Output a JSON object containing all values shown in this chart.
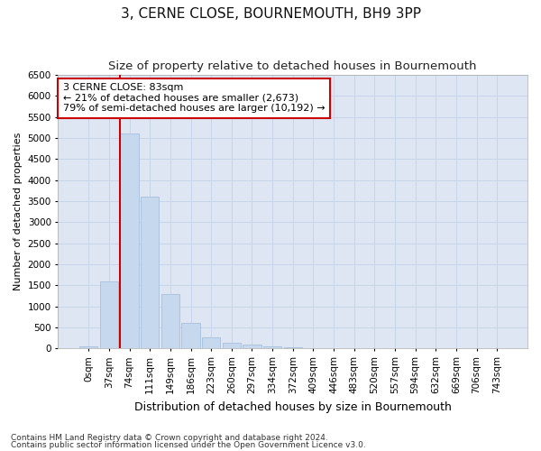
{
  "title": "3, CERNE CLOSE, BOURNEMOUTH, BH9 3PP",
  "subtitle": "Size of property relative to detached houses in Bournemouth",
  "xlabel": "Distribution of detached houses by size in Bournemouth",
  "ylabel": "Number of detached properties",
  "footnote1": "Contains HM Land Registry data © Crown copyright and database right 2024.",
  "footnote2": "Contains public sector information licensed under the Open Government Licence v3.0.",
  "bar_labels": [
    "0sqm",
    "37sqm",
    "74sqm",
    "111sqm",
    "149sqm",
    "186sqm",
    "223sqm",
    "260sqm",
    "297sqm",
    "334sqm",
    "372sqm",
    "409sqm",
    "446sqm",
    "483sqm",
    "520sqm",
    "557sqm",
    "594sqm",
    "632sqm",
    "669sqm",
    "706sqm",
    "743sqm"
  ],
  "bar_values": [
    50,
    1600,
    5100,
    3600,
    1300,
    600,
    260,
    130,
    90,
    60,
    30,
    0,
    0,
    0,
    0,
    0,
    0,
    0,
    0,
    0,
    0
  ],
  "bar_color": "#c5d8ed",
  "bar_edge_color": "#a0b8d8",
  "grid_color": "#c8d4e8",
  "background_color": "#dde6f2",
  "vline_color": "#cc0000",
  "vline_index": 2,
  "annotation_text": "3 CERNE CLOSE: 83sqm\n← 21% of detached houses are smaller (2,673)\n79% of semi-detached houses are larger (10,192) →",
  "annotation_box_facecolor": "#ffffff",
  "annotation_box_edgecolor": "#cc0000",
  "ylim": [
    0,
    6500
  ],
  "yticks": [
    0,
    500,
    1000,
    1500,
    2000,
    2500,
    3000,
    3500,
    4000,
    4500,
    5000,
    5500,
    6000,
    6500
  ],
  "title_fontsize": 11,
  "subtitle_fontsize": 9.5,
  "xlabel_fontsize": 9,
  "ylabel_fontsize": 8,
  "tick_fontsize": 7.5,
  "annot_fontsize": 8
}
